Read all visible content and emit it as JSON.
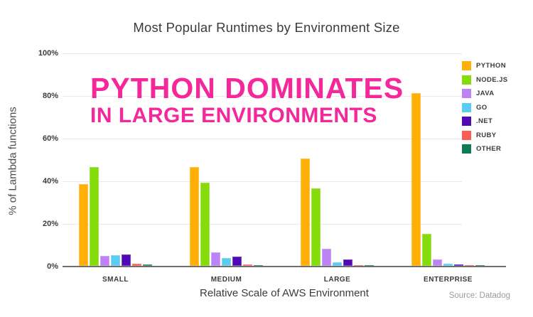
{
  "title": "Most Popular Runtimes by Environment Size",
  "overlay": {
    "line1": "PYTHON DOMINATES",
    "line2": "IN LARGE ENVIRONMENTS",
    "color": "#f4289b"
  },
  "source": "Source: Datadog",
  "colors": {
    "overlay_pink": "#f4289b",
    "text_dark": "#3b3b3b",
    "gridline": "#e9e9e9",
    "axis_line": "#6e6e6e",
    "source_gray": "#9b9b9b"
  },
  "chart_data": {
    "type": "bar",
    "title": "Most Popular Runtimes by Environment Size",
    "xlabel": "Relative Scale of AWS Environment",
    "ylabel": "% of Lambda functions",
    "ylim": [
      0,
      100
    ],
    "yticks": [
      "100%",
      "80%",
      "60%",
      "40%",
      "20%",
      "0%"
    ],
    "grid": true,
    "legend_position": "right",
    "categories": [
      "SMALL",
      "MEDIUM",
      "LARGE",
      "ENTERPRISE"
    ],
    "series": [
      {
        "name": "PYTHON",
        "color": "#ffaf05",
        "values": [
          38.5,
          46.2,
          50.3,
          81.0
        ]
      },
      {
        "name": "NODE.JS",
        "color": "#85dc0a",
        "values": [
          46.5,
          39.0,
          36.5,
          15.0
        ]
      },
      {
        "name": "JAVA",
        "color": "#be82f7",
        "values": [
          4.7,
          6.5,
          8.0,
          3.0
        ]
      },
      {
        "name": "GO",
        "color": "#5accf2",
        "values": [
          5.0,
          3.7,
          1.7,
          1.0
        ]
      },
      {
        "name": ".NET",
        "color": "#5009b5",
        "values": [
          5.3,
          4.2,
          3.1,
          0.6
        ]
      },
      {
        "name": "RUBY",
        "color": "#fb5d55",
        "values": [
          1.0,
          0.8,
          0.4,
          0.3
        ]
      },
      {
        "name": "OTHER",
        "color": "#0d7a50",
        "values": [
          0.7,
          0.5,
          0.4,
          0.4
        ]
      }
    ]
  }
}
